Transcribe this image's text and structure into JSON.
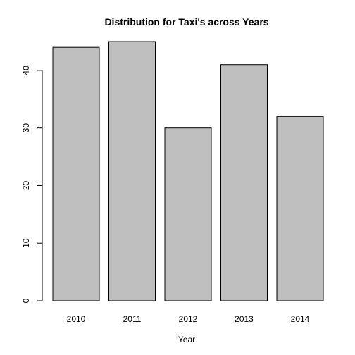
{
  "chart_data": {
    "type": "bar",
    "title": "Distribution for Taxi's across Years",
    "xlabel": "Year",
    "ylabel": "",
    "categories": [
      "2010",
      "2011",
      "2012",
      "2013",
      "2014"
    ],
    "values": [
      44,
      45,
      30,
      41,
      32
    ],
    "ylim": [
      0,
      45
    ],
    "yticks": [
      0,
      10,
      20,
      30,
      40
    ],
    "bar_color": "#bebebe",
    "bar_border_color": "#000000",
    "grid": false,
    "legend": "none"
  }
}
